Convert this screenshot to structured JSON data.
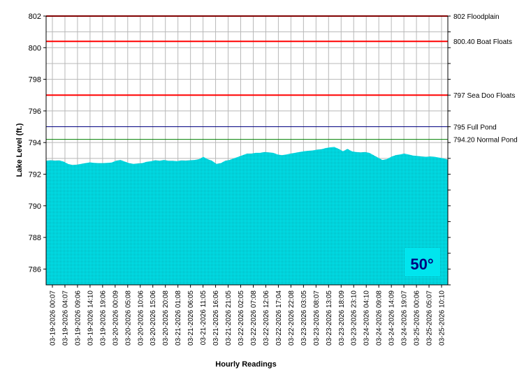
{
  "chart_data": {
    "type": "area",
    "xlabel": "Hourly Readings",
    "ylabel": "Lake Level (ft.)",
    "ylim": [
      785,
      802
    ],
    "yticks": [
      786,
      788,
      790,
      792,
      794,
      796,
      798,
      800,
      802
    ],
    "grid": true,
    "x_tick_labels": [
      "03-19-2026 00:07",
      "03-19-2026 04:07",
      "03-19-2026 09:06",
      "03-19-2026 14:10",
      "03-19-2026 19:06",
      "03-20-2026 00:09",
      "03-20-2026 05:08",
      "03-20-2026 10:06",
      "03-20-2026 15:06",
      "03-20-2026 20:08",
      "03-21-2026 01:08",
      "03-21-2026 06:05",
      "03-21-2026 11:05",
      "03-21-2026 16:06",
      "03-21-2026 21:05",
      "03-22-2026 02:05",
      "03-22-2026 07:08",
      "03-22-2026 12:06",
      "03-22-2026 17:04",
      "03-22-2026 22:08",
      "03-23-2026 03:05",
      "03-23-2026 08:07",
      "03-23-2026 13:05",
      "03-23-2026 18:09",
      "03-23-2026 23:10",
      "03-24-2026 04:10",
      "03-24-2026 09:08",
      "03-24-2026 14:09",
      "03-24-2026 19:07",
      "03-25-2026 00:06",
      "03-25-2026 05:07",
      "03-25-2026 10:10"
    ],
    "series": [
      {
        "values": [
          792.85,
          792.88,
          792.86,
          792.87,
          792.8,
          792.65,
          792.58,
          792.6,
          792.65,
          792.7,
          792.75,
          792.72,
          792.7,
          792.7,
          792.72,
          792.74,
          792.85,
          792.9,
          792.8,
          792.7,
          792.65,
          792.68,
          792.7,
          792.78,
          792.82,
          792.88,
          792.85,
          792.9,
          792.85,
          792.85,
          792.83,
          792.87,
          792.86,
          792.88,
          792.9,
          792.95,
          793.1,
          792.95,
          792.85,
          792.65,
          792.7,
          792.85,
          792.9,
          793.0,
          793.1,
          793.2,
          793.3,
          793.3,
          793.35,
          793.35,
          793.4,
          793.38,
          793.35,
          793.25,
          793.2,
          793.25,
          793.3,
          793.35,
          793.4,
          793.45,
          793.48,
          793.5,
          793.55,
          793.58,
          793.65,
          793.7,
          793.72,
          793.6,
          793.45,
          793.6,
          793.45,
          793.4,
          793.38,
          793.4,
          793.35,
          793.2,
          793.05,
          792.9,
          792.95,
          793.1,
          793.2,
          793.25,
          793.3,
          793.25,
          793.18,
          793.15,
          793.12,
          793.1,
          793.12,
          793.1,
          793.05,
          793.0,
          792.92
        ]
      }
    ],
    "reference_lines": [
      {
        "value": 802,
        "label": "802 Floodplain",
        "color": "#ff0000"
      },
      {
        "value": 800.4,
        "label": "800.40 Boat Floats",
        "color": "#ff0000"
      },
      {
        "value": 797,
        "label": "797 Sea Doo Floats",
        "color": "#ff0000"
      },
      {
        "value": 795,
        "label": "795 Full Pond",
        "color": "#000080"
      },
      {
        "value": 794.2,
        "label": "794.20 Normal Pond",
        "color": "#008000"
      }
    ],
    "temperature": "50°",
    "colors": {
      "area_fill": "#00e5ee",
      "area_stipple": "#0a5a60",
      "grid": "#b8b8b8",
      "temp_badge_bg": "#00e5ee",
      "temp_text": "#000080"
    }
  }
}
